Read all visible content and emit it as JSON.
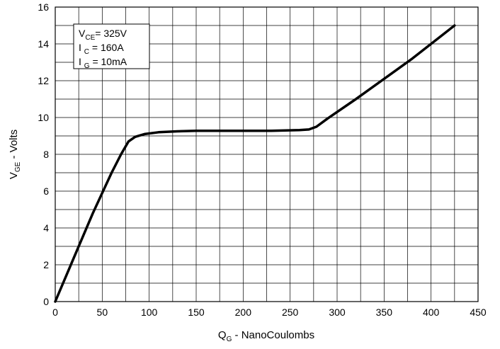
{
  "chart_data": {
    "type": "line",
    "title": "",
    "xlabel": {
      "main": "Q",
      "sub": "G",
      "rest": " - NanoCoulombs"
    },
    "ylabel": {
      "main": "V",
      "sub": "GE",
      "rest": " - Volts"
    },
    "xlim": [
      0,
      450
    ],
    "ylim": [
      0,
      16
    ],
    "x_ticks": [
      0,
      50,
      100,
      150,
      200,
      250,
      300,
      350,
      400,
      450
    ],
    "y_ticks": [
      0,
      2,
      4,
      6,
      8,
      10,
      12,
      14,
      16
    ],
    "x_minor_step": 25,
    "y_minor_step": 1,
    "grid": true,
    "legend_position": "top-left",
    "annotation_lines": [
      {
        "main": "V",
        "sub": "CE",
        "rest": "= 325V"
      },
      {
        "main": "I ",
        "sub": "C",
        "rest": " = 160A"
      },
      {
        "main": "I ",
        "sub": "G",
        "rest": " = 10mA"
      }
    ],
    "series": [
      {
        "x": [
          0,
          20,
          40,
          60,
          70,
          78,
          85,
          95,
          110,
          130,
          150,
          175,
          200,
          230,
          260,
          270,
          278,
          290,
          320,
          350,
          380,
          410,
          425
        ],
        "y": [
          0,
          2.4,
          4.8,
          7.0,
          8.0,
          8.7,
          8.95,
          9.1,
          9.2,
          9.25,
          9.28,
          9.28,
          9.28,
          9.28,
          9.32,
          9.35,
          9.5,
          9.95,
          11.0,
          12.1,
          13.2,
          14.4,
          15.0
        ]
      }
    ],
    "colors": {
      "line": "#000000",
      "grid": "#000000",
      "background": "#ffffff"
    }
  }
}
